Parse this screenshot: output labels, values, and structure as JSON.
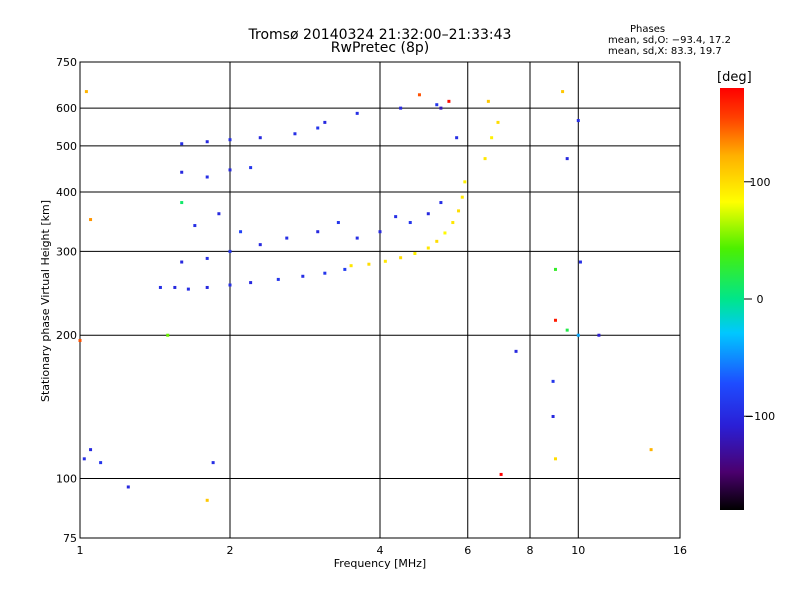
{
  "header": {
    "title": "Tromsø 20140324 21:32:00–21:33:43",
    "subtitle": "RwPretec (8p)"
  },
  "phases": {
    "label": "Phases",
    "line_o": "mean, sd,O: −93.4, 17.2",
    "line_x": "mean, sd,X: 83.3, 19.7"
  },
  "colorbar": {
    "label": "[deg]",
    "ticks": [
      "100",
      "0",
      "−100"
    ],
    "tick_values": [
      100,
      0,
      -100
    ],
    "range": [
      -180,
      180
    ]
  },
  "chart_data": {
    "type": "scatter",
    "title": "Tromsø 20140324 21:32:00–21:33:43",
    "subtitle": "RwPretec (8p)",
    "xlabel": "Frequency [MHz]",
    "ylabel": "Stationary phase Virtual Height [km]",
    "xscale": "log",
    "yscale": "log",
    "xlim": [
      1,
      16
    ],
    "ylim": [
      75,
      750
    ],
    "xticks": [
      1,
      2,
      4,
      6,
      8,
      10,
      16
    ],
    "xtick_labels": [
      "1",
      "2",
      "4",
      "6",
      "8",
      "10",
      "16"
    ],
    "yticks": [
      75,
      100,
      200,
      300,
      400,
      500,
      600,
      750
    ],
    "ytick_labels": [
      "75",
      "100",
      "200",
      "300",
      "400",
      "500",
      "600",
      "750"
    ],
    "grid": true,
    "color_encoding": "phase [deg]",
    "series": [
      {
        "values": [
          {
            "x": 1.45,
            "y": 252,
            "c": -95
          },
          {
            "x": 1.55,
            "y": 252,
            "c": -100
          },
          {
            "x": 1.65,
            "y": 250,
            "c": -95
          },
          {
            "x": 1.8,
            "y": 252,
            "c": -100
          },
          {
            "x": 2.0,
            "y": 255,
            "c": -95
          },
          {
            "x": 2.2,
            "y": 258,
            "c": -100
          },
          {
            "x": 2.5,
            "y": 262,
            "c": -90
          },
          {
            "x": 2.8,
            "y": 266,
            "c": -95
          },
          {
            "x": 3.1,
            "y": 270,
            "c": -90
          },
          {
            "x": 3.4,
            "y": 275,
            "c": -85
          },
          {
            "x": 1.6,
            "y": 285,
            "c": -100
          },
          {
            "x": 1.8,
            "y": 290,
            "c": -95
          },
          {
            "x": 2.0,
            "y": 300,
            "c": -90
          },
          {
            "x": 2.3,
            "y": 310,
            "c": -100
          },
          {
            "x": 1.7,
            "y": 340,
            "c": -95
          },
          {
            "x": 1.9,
            "y": 360,
            "c": -100
          },
          {
            "x": 2.1,
            "y": 330,
            "c": -80
          },
          {
            "x": 2.6,
            "y": 320,
            "c": -95
          },
          {
            "x": 3.0,
            "y": 330,
            "c": -100
          },
          {
            "x": 3.3,
            "y": 345,
            "c": -90
          },
          {
            "x": 3.6,
            "y": 320,
            "c": -95
          },
          {
            "x": 4.0,
            "y": 330,
            "c": -100
          },
          {
            "x": 4.3,
            "y": 355,
            "c": -95
          },
          {
            "x": 4.6,
            "y": 345,
            "c": -90
          },
          {
            "x": 5.0,
            "y": 360,
            "c": -100
          },
          {
            "x": 5.3,
            "y": 380,
            "c": -95
          },
          {
            "x": 1.6,
            "y": 440,
            "c": -100
          },
          {
            "x": 1.8,
            "y": 430,
            "c": -95
          },
          {
            "x": 2.0,
            "y": 445,
            "c": -100
          },
          {
            "x": 2.2,
            "y": 450,
            "c": -90
          },
          {
            "x": 1.6,
            "y": 505,
            "c": -95
          },
          {
            "x": 1.8,
            "y": 510,
            "c": -100
          },
          {
            "x": 2.0,
            "y": 515,
            "c": -95
          },
          {
            "x": 2.3,
            "y": 520,
            "c": -100
          },
          {
            "x": 2.7,
            "y": 530,
            "c": -95
          },
          {
            "x": 3.0,
            "y": 545,
            "c": -90
          },
          {
            "x": 3.1,
            "y": 560,
            "c": -100
          },
          {
            "x": 3.6,
            "y": 585,
            "c": -95
          },
          {
            "x": 4.4,
            "y": 600,
            "c": -100
          },
          {
            "x": 5.2,
            "y": 610,
            "c": -90
          },
          {
            "x": 5.7,
            "y": 520,
            "c": -95
          },
          {
            "x": 1.02,
            "y": 110,
            "c": -95
          },
          {
            "x": 1.05,
            "y": 115,
            "c": -100
          },
          {
            "x": 1.1,
            "y": 108,
            "c": -90
          },
          {
            "x": 1.85,
            "y": 108,
            "c": -95
          },
          {
            "x": 1.25,
            "y": 96,
            "c": -100
          }
        ]
      },
      {
        "values": [
          {
            "x": 3.5,
            "y": 280,
            "c": 95
          },
          {
            "x": 3.8,
            "y": 282,
            "c": 100
          },
          {
            "x": 4.1,
            "y": 286,
            "c": 95
          },
          {
            "x": 4.4,
            "y": 291,
            "c": 100
          },
          {
            "x": 4.7,
            "y": 297,
            "c": 90
          },
          {
            "x": 5.0,
            "y": 305,
            "c": 95
          },
          {
            "x": 5.2,
            "y": 315,
            "c": 100
          },
          {
            "x": 5.4,
            "y": 328,
            "c": 85
          },
          {
            "x": 5.6,
            "y": 345,
            "c": 95
          },
          {
            "x": 5.75,
            "y": 365,
            "c": 100
          },
          {
            "x": 5.85,
            "y": 390,
            "c": 95
          },
          {
            "x": 5.92,
            "y": 420,
            "c": 90
          },
          {
            "x": 6.5,
            "y": 470,
            "c": 95
          },
          {
            "x": 6.7,
            "y": 520,
            "c": 90
          },
          {
            "x": 6.9,
            "y": 560,
            "c": 100
          },
          {
            "x": 6.6,
            "y": 620,
            "c": 110
          },
          {
            "x": 4.8,
            "y": 640,
            "c": 150
          },
          {
            "x": 1.03,
            "y": 650,
            "c": 120
          },
          {
            "x": 9.3,
            "y": 650,
            "c": 110
          },
          {
            "x": 14,
            "y": 115,
            "c": 120
          },
          {
            "x": 1.8,
            "y": 90,
            "c": 110
          },
          {
            "x": 9.0,
            "y": 110,
            "c": 100
          },
          {
            "x": 1.05,
            "y": 350,
            "c": 130
          }
        ]
      },
      {
        "values": [
          {
            "x": 9.0,
            "y": 215,
            "c": 170
          },
          {
            "x": 7.0,
            "y": 102,
            "c": 180
          },
          {
            "x": 5.5,
            "y": 620,
            "c": 175
          },
          {
            "x": 9.5,
            "y": 205,
            "c": 20
          },
          {
            "x": 9.0,
            "y": 275,
            "c": 30
          },
          {
            "x": 10.0,
            "y": 200,
            "c": -40
          },
          {
            "x": 11.0,
            "y": 200,
            "c": -110
          },
          {
            "x": 9.5,
            "y": 470,
            "c": -100
          },
          {
            "x": 10.0,
            "y": 565,
            "c": -95
          },
          {
            "x": 1.6,
            "y": 380,
            "c": 10
          },
          {
            "x": 1.5,
            "y": 200,
            "c": 50
          },
          {
            "x": 1.0,
            "y": 195,
            "c": 150
          },
          {
            "x": 7.5,
            "y": 185,
            "c": -100
          },
          {
            "x": 8.9,
            "y": 160,
            "c": -90
          },
          {
            "x": 8.9,
            "y": 135,
            "c": -100
          },
          {
            "x": 10.1,
            "y": 285,
            "c": -95
          },
          {
            "x": 5.3,
            "y": 600,
            "c": -120
          }
        ]
      }
    ]
  }
}
